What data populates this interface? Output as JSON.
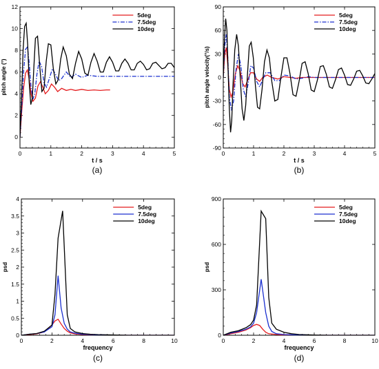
{
  "chart_data": [
    {
      "type": "line",
      "panel_label": "(a)",
      "xlabel": "t / s",
      "ylabel": "pitch angle (°)",
      "xlim": [
        0,
        5
      ],
      "ylim": [
        -1,
        12
      ],
      "xticks": [
        0,
        1,
        2,
        3,
        4,
        5
      ],
      "yticks": [
        0,
        2,
        4,
        6,
        8,
        10,
        12
      ],
      "grid": false,
      "legend_position": "top-right",
      "series": [
        {
          "name": "5deg",
          "color": "#e41a1c",
          "dash": "solid",
          "x": [
            0,
            0.06,
            0.12,
            0.18,
            0.24,
            0.3,
            0.36,
            0.42,
            0.5,
            0.58,
            0.66,
            0.74,
            0.82,
            0.92,
            1.02,
            1.12,
            1.22,
            1.35,
            1.5,
            1.65,
            1.8,
            2.0,
            2.2,
            2.4,
            2.6,
            2.8,
            2.92
          ],
          "y": [
            0,
            2.5,
            4.6,
            5.9,
            6.2,
            5.3,
            4.0,
            3.3,
            3.6,
            4.7,
            5.1,
            4.6,
            4.0,
            4.3,
            4.9,
            4.6,
            4.2,
            4.5,
            4.3,
            4.4,
            4.3,
            4.4,
            4.3,
            4.35,
            4.3,
            4.35,
            4.35
          ]
        },
        {
          "name": "7.5deg",
          "color": "#1a2fcf",
          "dash": "dashdot",
          "x": [
            0,
            0.06,
            0.12,
            0.18,
            0.24,
            0.3,
            0.36,
            0.42,
            0.48,
            0.55,
            0.62,
            0.7,
            0.78,
            0.86,
            0.95,
            1.05,
            1.15,
            1.25,
            1.35,
            1.5,
            1.65,
            1.8,
            2.0,
            2.2,
            2.5,
            2.8,
            3.2,
            3.6,
            4.0,
            4.5,
            5.0
          ],
          "y": [
            0,
            3.0,
            6.2,
            8.1,
            8.3,
            6.8,
            4.6,
            3.5,
            4.0,
            5.8,
            7.0,
            6.5,
            5.0,
            4.6,
            5.4,
            6.3,
            5.8,
            5.2,
            5.4,
            6.0,
            5.5,
            5.8,
            5.5,
            5.7,
            5.6,
            5.6,
            5.6,
            5.6,
            5.6,
            5.6,
            5.6
          ]
        },
        {
          "name": "10deg",
          "color": "#000000",
          "dash": "solid",
          "x": [
            0,
            0.05,
            0.1,
            0.15,
            0.2,
            0.25,
            0.3,
            0.35,
            0.4,
            0.45,
            0.5,
            0.57,
            0.64,
            0.71,
            0.78,
            0.85,
            0.92,
            1.0,
            1.08,
            1.16,
            1.24,
            1.32,
            1.4,
            1.5,
            1.6,
            1.7,
            1.8,
            1.9,
            2.0,
            2.1,
            2.2,
            2.3,
            2.4,
            2.5,
            2.6,
            2.7,
            2.8,
            2.9,
            3.0,
            3.1,
            3.2,
            3.3,
            3.4,
            3.5,
            3.6,
            3.7,
            3.8,
            3.9,
            4.0,
            4.1,
            4.2,
            4.3,
            4.4,
            4.5,
            4.6,
            4.7,
            4.8,
            4.9,
            5.0
          ],
          "y": [
            0,
            3.5,
            8.0,
            10.2,
            10.5,
            8.5,
            5.0,
            3.0,
            3.6,
            6.5,
            9.1,
            9.3,
            6.5,
            4.2,
            4.5,
            7.0,
            8.6,
            8.5,
            6.3,
            4.9,
            5.3,
            7.2,
            8.3,
            7.5,
            5.8,
            5.4,
            6.8,
            7.9,
            7.2,
            5.9,
            5.7,
            6.9,
            7.7,
            7.0,
            6.0,
            6.0,
            6.9,
            7.4,
            6.9,
            6.1,
            6.1,
            6.8,
            7.2,
            6.8,
            6.2,
            6.2,
            6.8,
            7.0,
            6.7,
            6.2,
            6.3,
            6.8,
            6.9,
            6.6,
            6.3,
            6.4,
            6.8,
            6.8,
            6.4
          ]
        }
      ]
    },
    {
      "type": "line",
      "panel_label": "(b)",
      "xlabel": "t / s",
      "ylabel": "pitch angle velocity(°/s)",
      "xlim": [
        0,
        5
      ],
      "ylim": [
        -90,
        90
      ],
      "xticks": [
        0,
        1,
        2,
        3,
        4,
        5
      ],
      "yticks": [
        -90,
        -60,
        -30,
        0,
        30,
        60,
        90
      ],
      "grid": false,
      "legend_position": "top-right",
      "series": [
        {
          "name": "5deg",
          "color": "#e41a1c",
          "dash": "solid",
          "x": [
            0,
            0.05,
            0.1,
            0.15,
            0.2,
            0.26,
            0.32,
            0.4,
            0.48,
            0.56,
            0.64,
            0.72,
            0.8,
            0.9,
            1.0,
            1.1,
            1.2,
            1.3,
            1.45,
            1.6,
            1.8,
            2.0,
            2.2,
            2.4,
            2.6,
            2.8,
            3.0,
            3.3,
            3.6,
            4.0,
            4.5,
            5.0
          ],
          "y": [
            0,
            30,
            38,
            15,
            -15,
            -25,
            -18,
            5,
            15,
            8,
            -8,
            -12,
            -4,
            6,
            6,
            -2,
            -5,
            0,
            3,
            0,
            -2,
            1,
            0,
            -1,
            0,
            0,
            0,
            0,
            0,
            0,
            0,
            0
          ]
        },
        {
          "name": "7.5deg",
          "color": "#1a2fcf",
          "dash": "dashdot",
          "x": [
            0,
            0.05,
            0.1,
            0.15,
            0.2,
            0.27,
            0.34,
            0.42,
            0.5,
            0.58,
            0.66,
            0.74,
            0.82,
            0.91,
            1.0,
            1.1,
            1.2,
            1.3,
            1.4,
            1.55,
            1.7,
            1.85,
            2.0,
            2.2,
            2.4,
            2.6,
            2.8,
            3.0,
            3.3,
            3.6,
            4.0,
            4.5,
            5.0
          ],
          "y": [
            0,
            40,
            55,
            25,
            -25,
            -42,
            -30,
            10,
            30,
            15,
            -15,
            -25,
            -8,
            15,
            12,
            -5,
            -12,
            -3,
            6,
            6,
            -4,
            -4,
            3,
            2,
            -2,
            -1,
            1,
            0,
            0,
            0,
            0,
            0,
            0
          ]
        },
        {
          "name": "10deg",
          "color": "#000000",
          "dash": "solid",
          "x": [
            0,
            0.04,
            0.08,
            0.12,
            0.16,
            0.2,
            0.24,
            0.28,
            0.32,
            0.38,
            0.44,
            0.5,
            0.56,
            0.62,
            0.68,
            0.74,
            0.8,
            0.86,
            0.92,
            0.99,
            1.06,
            1.13,
            1.2,
            1.28,
            1.36,
            1.44,
            1.52,
            1.6,
            1.7,
            1.8,
            1.9,
            2.0,
            2.1,
            2.2,
            2.3,
            2.4,
            2.5,
            2.6,
            2.7,
            2.8,
            2.9,
            3.0,
            3.1,
            3.2,
            3.3,
            3.4,
            3.5,
            3.6,
            3.7,
            3.8,
            3.9,
            4.0,
            4.1,
            4.2,
            4.3,
            4.4,
            4.5,
            4.6,
            4.7,
            4.8,
            4.9,
            5.0
          ],
          "y": [
            0,
            50,
            75,
            60,
            10,
            -40,
            -70,
            -55,
            -10,
            35,
            55,
            40,
            0,
            -40,
            -55,
            -35,
            5,
            40,
            45,
            25,
            -10,
            -38,
            -40,
            -15,
            20,
            35,
            25,
            -5,
            -30,
            -28,
            0,
            25,
            25,
            5,
            -22,
            -24,
            -5,
            18,
            20,
            5,
            -16,
            -18,
            -4,
            14,
            15,
            4,
            -12,
            -14,
            -3,
            10,
            12,
            3,
            -9,
            -10,
            -2,
            8,
            9,
            2,
            -7,
            -8,
            -2,
            5
          ]
        }
      ]
    },
    {
      "type": "line",
      "panel_label": "(c)",
      "xlabel": "frequency",
      "ylabel": "psd",
      "xlim": [
        0,
        10
      ],
      "ylim": [
        0,
        4
      ],
      "xticks": [
        0,
        2,
        4,
        6,
        8,
        10
      ],
      "yticks": [
        0,
        0.5,
        1,
        1.5,
        2,
        2.5,
        3,
        3.5,
        4
      ],
      "grid": false,
      "legend_position": "top-right",
      "series": [
        {
          "name": "5deg",
          "color": "#e41a1c",
          "dash": "solid",
          "x": [
            0,
            0.5,
            1.0,
            1.5,
            2.0,
            2.2,
            2.4,
            2.6,
            2.8,
            3.0,
            3.2,
            3.5,
            4.0,
            5.0,
            6.0,
            7.0,
            8.0,
            9.0,
            10.0
          ],
          "y": [
            0,
            0.02,
            0.04,
            0.1,
            0.3,
            0.42,
            0.47,
            0.33,
            0.2,
            0.12,
            0.07,
            0.04,
            0.02,
            0.01,
            0,
            0,
            0,
            0,
            0
          ]
        },
        {
          "name": "7.5deg",
          "color": "#1a2fcf",
          "dash": "solid",
          "x": [
            0,
            0.5,
            1.0,
            1.5,
            2.0,
            2.2,
            2.4,
            2.6,
            2.8,
            3.0,
            3.2,
            3.5,
            4.0,
            5.0,
            6.0,
            7.0,
            8.0,
            9.0,
            10.0
          ],
          "y": [
            0,
            0.03,
            0.05,
            0.1,
            0.25,
            0.6,
            1.75,
            0.8,
            0.35,
            0.18,
            0.1,
            0.06,
            0.03,
            0.01,
            0,
            0,
            0,
            0,
            0
          ]
        },
        {
          "name": "10deg",
          "color": "#000000",
          "dash": "solid",
          "x": [
            0,
            0.5,
            1.0,
            1.5,
            2.0,
            2.2,
            2.4,
            2.7,
            3.0,
            3.2,
            3.5,
            4.0,
            4.5,
            5.0,
            6.0,
            7.0,
            8.0,
            9.0,
            10.0
          ],
          "y": [
            0,
            0.03,
            0.05,
            0.12,
            0.3,
            1.2,
            2.85,
            3.65,
            0.6,
            0.2,
            0.1,
            0.05,
            0.03,
            0.02,
            0.01,
            0,
            0,
            0,
            0
          ]
        }
      ]
    },
    {
      "type": "line",
      "panel_label": "(d)",
      "xlabel": "frequency",
      "ylabel": "psd",
      "xlim": [
        0,
        10
      ],
      "ylim": [
        0,
        900
      ],
      "xticks": [
        0,
        2,
        4,
        6,
        8,
        10
      ],
      "yticks": [
        0,
        300,
        600,
        900
      ],
      "grid": false,
      "legend_position": "top-right",
      "series": [
        {
          "name": "5deg",
          "color": "#e41a1c",
          "dash": "solid",
          "x": [
            0,
            0.5,
            1.0,
            1.5,
            1.8,
            2.0,
            2.2,
            2.4,
            2.6,
            2.8,
            3.0,
            3.5,
            4.0,
            5.0,
            6.0,
            7.0,
            8.0,
            9.0,
            10.0
          ],
          "y": [
            0,
            10,
            20,
            35,
            50,
            65,
            72,
            65,
            40,
            20,
            10,
            5,
            2,
            1,
            0,
            0,
            0,
            0,
            0
          ]
        },
        {
          "name": "7.5deg",
          "color": "#1a2fcf",
          "dash": "solid",
          "x": [
            0,
            0.5,
            1.0,
            1.5,
            1.8,
            2.0,
            2.2,
            2.5,
            2.8,
            3.0,
            3.2,
            3.5,
            4.0,
            5.0,
            6.0,
            7.0,
            8.0,
            9.0,
            10.0
          ],
          "y": [
            0,
            15,
            25,
            40,
            55,
            80,
            150,
            370,
            150,
            60,
            25,
            10,
            5,
            2,
            0,
            0,
            0,
            0,
            0
          ]
        },
        {
          "name": "10deg",
          "color": "#000000",
          "dash": "solid",
          "x": [
            0,
            0.5,
            1.0,
            1.5,
            1.8,
            2.0,
            2.2,
            2.5,
            2.8,
            3.0,
            3.2,
            3.5,
            4.0,
            4.5,
            5.0,
            6.0,
            7.0,
            8.0,
            10.0
          ],
          "y": [
            0,
            20,
            30,
            50,
            70,
            100,
            200,
            820,
            770,
            250,
            80,
            40,
            20,
            10,
            5,
            2,
            0,
            0,
            0
          ]
        }
      ]
    }
  ]
}
